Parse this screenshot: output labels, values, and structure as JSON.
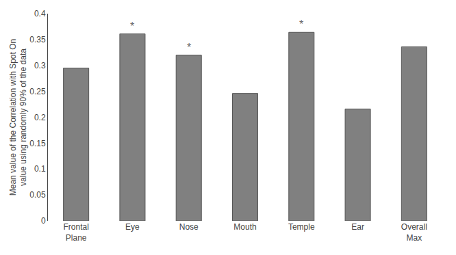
{
  "chart_data": {
    "type": "bar",
    "categories": [
      "Frontal\nPlane",
      "Eye",
      "Nose",
      "Mouth",
      "Temple",
      "Ear",
      "Overall\nMax"
    ],
    "values": [
      0.295,
      0.361,
      0.32,
      0.246,
      0.364,
      0.216,
      0.336
    ],
    "color": "#808080",
    "ylabel": "Mean value of the Correlation with Spot On\nvalue using randomly 90% of the data",
    "ylim": [
      0,
      0.4
    ],
    "yticks": [
      0,
      0.05,
      0.1,
      0.15,
      0.2,
      0.25,
      0.3,
      0.35,
      0.4
    ],
    "grid": false,
    "annotations": [
      {
        "text": "*",
        "category": "Eye"
      },
      {
        "text": "*",
        "category": "Nose"
      },
      {
        "text": "*",
        "category": "Temple"
      }
    ]
  }
}
